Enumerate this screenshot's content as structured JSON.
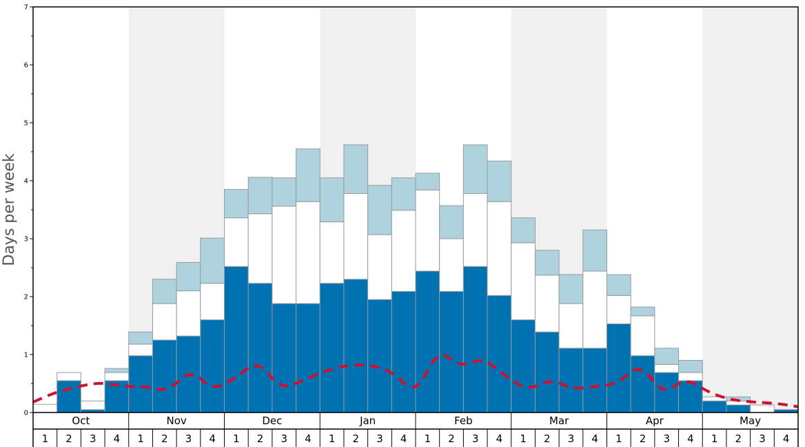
{
  "chart_data": {
    "type": "bar",
    "ylabel": "Days per week",
    "ylim": [
      0,
      7
    ],
    "yticks": [
      "0",
      "1",
      "2",
      "3",
      "4",
      "5",
      "6",
      "7"
    ],
    "months": [
      "Oct",
      "Nov",
      "Dec",
      "Jan",
      "Feb",
      "Mar",
      "Apr",
      "May"
    ],
    "weeks": [
      "1",
      "2",
      "3",
      "4"
    ],
    "stacked": true,
    "colors": {
      "bottom": "#0072b2",
      "middle": "#ffffff",
      "top": "#aed3df",
      "line": "#d0102c",
      "shade": "#f0f0f0",
      "bar_edge": "#999999"
    },
    "series": [
      {
        "values": [
          0,
          0.55,
          0.05,
          0.55,
          0.98,
          1.25,
          1.32,
          1.6,
          2.52,
          2.23,
          1.88,
          1.88,
          2.23,
          2.3,
          1.95,
          2.09,
          2.44,
          2.09,
          2.52,
          2.02,
          1.6,
          1.39,
          1.11,
          1.11,
          1.53,
          0.98,
          0.69,
          0.55,
          0.2,
          0.13,
          0,
          0.05
        ]
      },
      {
        "values": [
          0.14,
          0.14,
          0.15,
          0.14,
          0.2,
          0.63,
          0.78,
          0.63,
          0.84,
          1.2,
          1.68,
          1.76,
          1.06,
          1.48,
          1.12,
          1.4,
          1.4,
          0.91,
          1.26,
          1.62,
          1.33,
          0.98,
          0.77,
          1.33,
          0.49,
          0.69,
          0.14,
          0.14,
          0.07,
          0.07,
          0.13,
          0
        ]
      },
      {
        "values": [
          0,
          0,
          0,
          0.07,
          0.21,
          0.42,
          0.49,
          0.78,
          0.49,
          0.63,
          0.49,
          0.91,
          0.76,
          0.84,
          0.85,
          0.56,
          0.29,
          0.57,
          0.84,
          0.7,
          0.43,
          0.43,
          0.5,
          0.71,
          0.36,
          0.15,
          0.28,
          0.21,
          0,
          0.07,
          0,
          0
        ]
      },
      {
        "values": [
          0.18,
          0.35,
          0.45,
          0.52,
          0.45,
          0.45,
          0.36,
          0.75,
          0.38,
          0.6,
          0.9,
          0.4,
          0.55,
          0.72,
          0.82,
          0.82,
          0.7,
          0.3,
          1.1,
          0.78,
          0.95,
          0.62,
          0.38,
          0.58,
          0.4,
          0.45,
          0.5,
          0.85,
          0.3,
          0.6,
          0.35,
          0.22,
          0.18,
          0.16,
          0.1
        ]
      }
    ]
  }
}
